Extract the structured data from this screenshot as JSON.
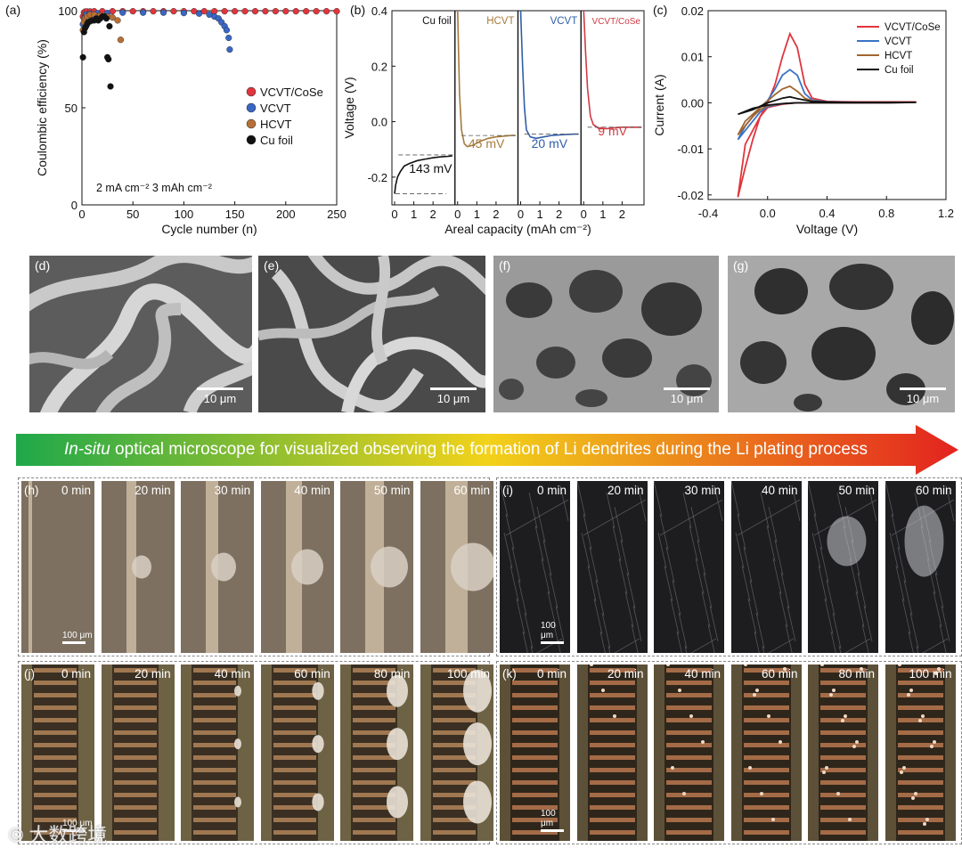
{
  "panel_a": {
    "letter": "(a)",
    "chart_data": {
      "type": "scatter",
      "xlabel": "Cycle number (n)",
      "ylabel": "Coulombic efficiency (%)",
      "xlim": [
        0,
        250
      ],
      "ylim": [
        0,
        100
      ],
      "xticks": [
        "0",
        "50",
        "100",
        "150",
        "200",
        "250"
      ],
      "yticks": [
        "0",
        "50",
        "100"
      ],
      "annotation": "2 mA cm⁻²   3 mAh cm⁻²",
      "legend": "right",
      "series": [
        {
          "name": "VCVT/CoSe",
          "color": "#e0353d",
          "x": [
            1,
            2,
            3,
            5,
            8,
            12,
            20,
            30,
            40,
            50,
            60,
            70,
            80,
            90,
            100,
            110,
            120,
            130,
            140,
            150,
            160,
            170,
            180,
            190,
            200,
            210,
            220,
            230,
            240,
            250
          ],
          "y": [
            97,
            99,
            99.5,
            99.6,
            99.6,
            99.7,
            99.7,
            99.7,
            99.7,
            99.7,
            99.7,
            99.7,
            99.7,
            99.7,
            99.7,
            99.7,
            99.7,
            99.7,
            99.7,
            99.7,
            99.7,
            99.7,
            99.7,
            99.7,
            99.7,
            99.7,
            99.7,
            99.7,
            99.7,
            99.7
          ]
        },
        {
          "name": "VCVT",
          "color": "#3a67c4",
          "x": [
            1,
            2,
            4,
            8,
            15,
            25,
            40,
            60,
            80,
            100,
            115,
            125,
            130,
            134,
            137,
            140,
            142,
            144,
            145
          ],
          "y": [
            93,
            96,
            98,
            98.5,
            98.7,
            98.8,
            99,
            99,
            99,
            98.8,
            98.5,
            98,
            97,
            96,
            94,
            92,
            90,
            86,
            80
          ]
        },
        {
          "name": "HCVT",
          "color": "#b86f35",
          "x": [
            1,
            2,
            3,
            5,
            8,
            12,
            18,
            25,
            30,
            35,
            38
          ],
          "y": [
            90,
            94,
            96,
            97,
            98,
            98,
            97.5,
            97,
            96.5,
            95,
            85
          ]
        },
        {
          "name": "Cu foil",
          "color": "#111111",
          "x": [
            1,
            2,
            3,
            4,
            5,
            6,
            8,
            10,
            12,
            14,
            16,
            18,
            20,
            22,
            24,
            25,
            26,
            27,
            28
          ],
          "y": [
            76,
            89,
            91,
            92,
            93,
            94,
            94.5,
            95,
            95,
            96,
            95,
            96,
            97,
            97,
            96,
            76,
            75,
            92,
            61
          ]
        }
      ]
    }
  },
  "panel_b": {
    "letter": "(b)",
    "chart_data": {
      "type": "line",
      "xlabel": "Areal capacity (mAh cm⁻²)",
      "ylabel": "Voltage (V)",
      "ylim": [
        -0.3,
        0.4
      ],
      "yticks": [
        "-0.2",
        "0.0",
        "0.2",
        "0.4"
      ],
      "xticks": [
        "0",
        "1",
        "2"
      ],
      "sub_panels": [
        {
          "name": "Cu foil",
          "color": "#111111",
          "overpotential": "143 mV",
          "plateau": -0.12,
          "x": [
            0,
            0.05,
            0.15,
            0.3,
            0.5,
            0.8,
            1.2,
            1.6,
            2,
            2.4,
            2.8,
            3
          ],
          "y": [
            -0.26,
            -0.23,
            -0.2,
            -0.18,
            -0.16,
            -0.15,
            -0.14,
            -0.135,
            -0.13,
            -0.127,
            -0.125,
            -0.123
          ]
        },
        {
          "name": "HCVT",
          "color": "#a57a3c",
          "overpotential": "45 mV",
          "plateau": -0.05,
          "x": [
            0,
            0.05,
            0.1,
            0.2,
            0.35,
            0.5,
            0.8,
            1.2,
            1.6,
            2,
            2.4,
            2.8,
            3
          ],
          "y": [
            0.4,
            0.25,
            0.1,
            -0.03,
            -0.08,
            -0.09,
            -0.085,
            -0.07,
            -0.06,
            -0.055,
            -0.052,
            -0.05,
            -0.05
          ]
        },
        {
          "name": "VCVT",
          "color": "#2f5eaa",
          "overpotential": "20 mV",
          "plateau": -0.045,
          "x": [
            0,
            0.05,
            0.1,
            0.2,
            0.3,
            0.5,
            0.8,
            1.2,
            1.6,
            2,
            2.4,
            2.8,
            3
          ],
          "y": [
            0.4,
            0.3,
            0.2,
            0.05,
            -0.03,
            -0.055,
            -0.06,
            -0.055,
            -0.05,
            -0.048,
            -0.046,
            -0.045,
            -0.045
          ]
        },
        {
          "name": "VCVT/CoSe",
          "color": "#d13a44",
          "overpotential": "9 mV",
          "plateau": -0.02,
          "x": [
            0,
            0.05,
            0.1,
            0.2,
            0.35,
            0.5,
            0.8,
            1.2,
            1.6,
            2,
            2.4,
            2.8,
            3
          ],
          "y": [
            0.4,
            0.33,
            0.25,
            0.12,
            0.02,
            -0.01,
            -0.025,
            -0.025,
            -0.022,
            -0.02,
            -0.02,
            -0.02,
            -0.02
          ]
        }
      ]
    }
  },
  "panel_c": {
    "letter": "(c)",
    "chart_data": {
      "type": "line",
      "xlabel": "Voltage (V)",
      "ylabel": "Current (A)",
      "xlim": [
        -0.4,
        1.2
      ],
      "ylim": [
        -0.021,
        0.02
      ],
      "xticks": [
        "-0.4",
        "0.0",
        "0.4",
        "0.8",
        "1.2"
      ],
      "yticks": [
        "-0.02",
        "-0.01",
        "0.00",
        "0.01",
        "0.02"
      ],
      "legend": "top-right",
      "series": [
        {
          "name": "VCVT/CoSe",
          "color": "#e0353d",
          "x": [
            -0.2,
            -0.15,
            -0.1,
            -0.05,
            0,
            0.05,
            0.1,
            0.15,
            0.2,
            0.25,
            0.3,
            0.4,
            0.6,
            0.8,
            1.0,
            0.8,
            0.6,
            0.4,
            0.2,
            0.1,
            0,
            -0.05,
            -0.1,
            -0.15,
            -0.2
          ],
          "y": [
            -0.0205,
            -0.014,
            -0.008,
            -0.003,
            0,
            0.004,
            0.01,
            0.015,
            0.012,
            0.004,
            0.001,
            0.0003,
            0.0002,
            0.0002,
            0.0002,
            0.0001,
            0,
            0,
            0,
            -0.0003,
            -0.001,
            -0.003,
            -0.006,
            -0.009,
            -0.0205
          ]
        },
        {
          "name": "VCVT",
          "color": "#3a72c4",
          "x": [
            -0.2,
            -0.15,
            -0.1,
            -0.05,
            0,
            0.05,
            0.1,
            0.15,
            0.2,
            0.25,
            0.3,
            0.4,
            0.6,
            0.8,
            1.0,
            0.8,
            0.6,
            0.4,
            0.2,
            0.1,
            0,
            -0.05,
            -0.1,
            -0.15,
            -0.2
          ],
          "y": [
            -0.008,
            -0.005,
            -0.003,
            -0.001,
            0.0005,
            0.003,
            0.006,
            0.0072,
            0.006,
            0.002,
            0.0006,
            0.0002,
            0.0001,
            0.0001,
            0.0001,
            0,
            0,
            0,
            0,
            -0.0002,
            -0.0008,
            -0.002,
            -0.004,
            -0.006,
            -0.008
          ]
        },
        {
          "name": "HCVT",
          "color": "#a0662f",
          "x": [
            -0.2,
            -0.15,
            -0.1,
            -0.05,
            0,
            0.05,
            0.1,
            0.15,
            0.2,
            0.25,
            0.3,
            0.4,
            0.6,
            0.8,
            1.0,
            0.8,
            0.6,
            0.4,
            0.2,
            0.1,
            0,
            -0.05,
            -0.1,
            -0.15,
            -0.2
          ],
          "y": [
            -0.007,
            -0.004,
            -0.0025,
            -0.001,
            0.0004,
            0.0018,
            0.003,
            0.0036,
            0.0025,
            0.001,
            0.0004,
            0.0001,
            0.0001,
            0.0001,
            0.0001,
            0,
            0,
            0,
            0,
            -0.0002,
            -0.0006,
            -0.0015,
            -0.003,
            -0.005,
            -0.007
          ]
        },
        {
          "name": "Cu foil",
          "color": "#111111",
          "x": [
            -0.2,
            -0.1,
            0,
            0.05,
            0.1,
            0.15,
            0.2,
            0.3,
            0.5,
            0.8,
            1.0,
            0.8,
            0.5,
            0.2,
            0.1,
            0,
            -0.1,
            -0.2
          ],
          "y": [
            -0.0025,
            -0.0015,
            0,
            0.0005,
            0.001,
            0.0013,
            0.0009,
            0.0003,
            0.0001,
            0.0001,
            0.0001,
            0,
            0,
            0,
            -0.0002,
            -0.0005,
            -0.0012,
            -0.0025
          ]
        }
      ]
    }
  },
  "sem": [
    {
      "label": "(d)",
      "scale": "10 μm"
    },
    {
      "label": "(e)",
      "scale": "10 μm"
    },
    {
      "label": "(f)",
      "scale": "10 μm"
    },
    {
      "label": "(g)",
      "scale": "10 μm"
    }
  ],
  "arrow": {
    "italic": "In-situ",
    "rest": " optical microscope for visualized observing the formation  of Li dendrites during the Li plating process"
  },
  "micro_groups": [
    {
      "label": "(h)",
      "scale": "100 μm",
      "times": [
        "0 min",
        "20 min",
        "30 min",
        "40 min",
        "50 min",
        "60 min"
      ]
    },
    {
      "label": "(i)",
      "scale": "100 μm",
      "times": [
        "0 min",
        "20 min",
        "30 min",
        "40 min",
        "50 min",
        "60 min"
      ]
    },
    {
      "label": "(j)",
      "scale": "100 μm",
      "times": [
        "0 min",
        "20 min",
        "40 min",
        "60 min",
        "80 min",
        "100 min"
      ]
    },
    {
      "label": "(k)",
      "scale": "100 μm",
      "times": [
        "0 min",
        "20 min",
        "40 min",
        "60 min",
        "80 min",
        "100 min"
      ]
    }
  ],
  "watermark": "大数跨境",
  "colors": {
    "red": "#e0353d",
    "blue": "#3a67c4",
    "brown": "#b86f35",
    "black": "#111111",
    "arrow_start": "#1fa84a",
    "arrow_mid": "#f2d21a",
    "arrow_end": "#e3231f"
  }
}
